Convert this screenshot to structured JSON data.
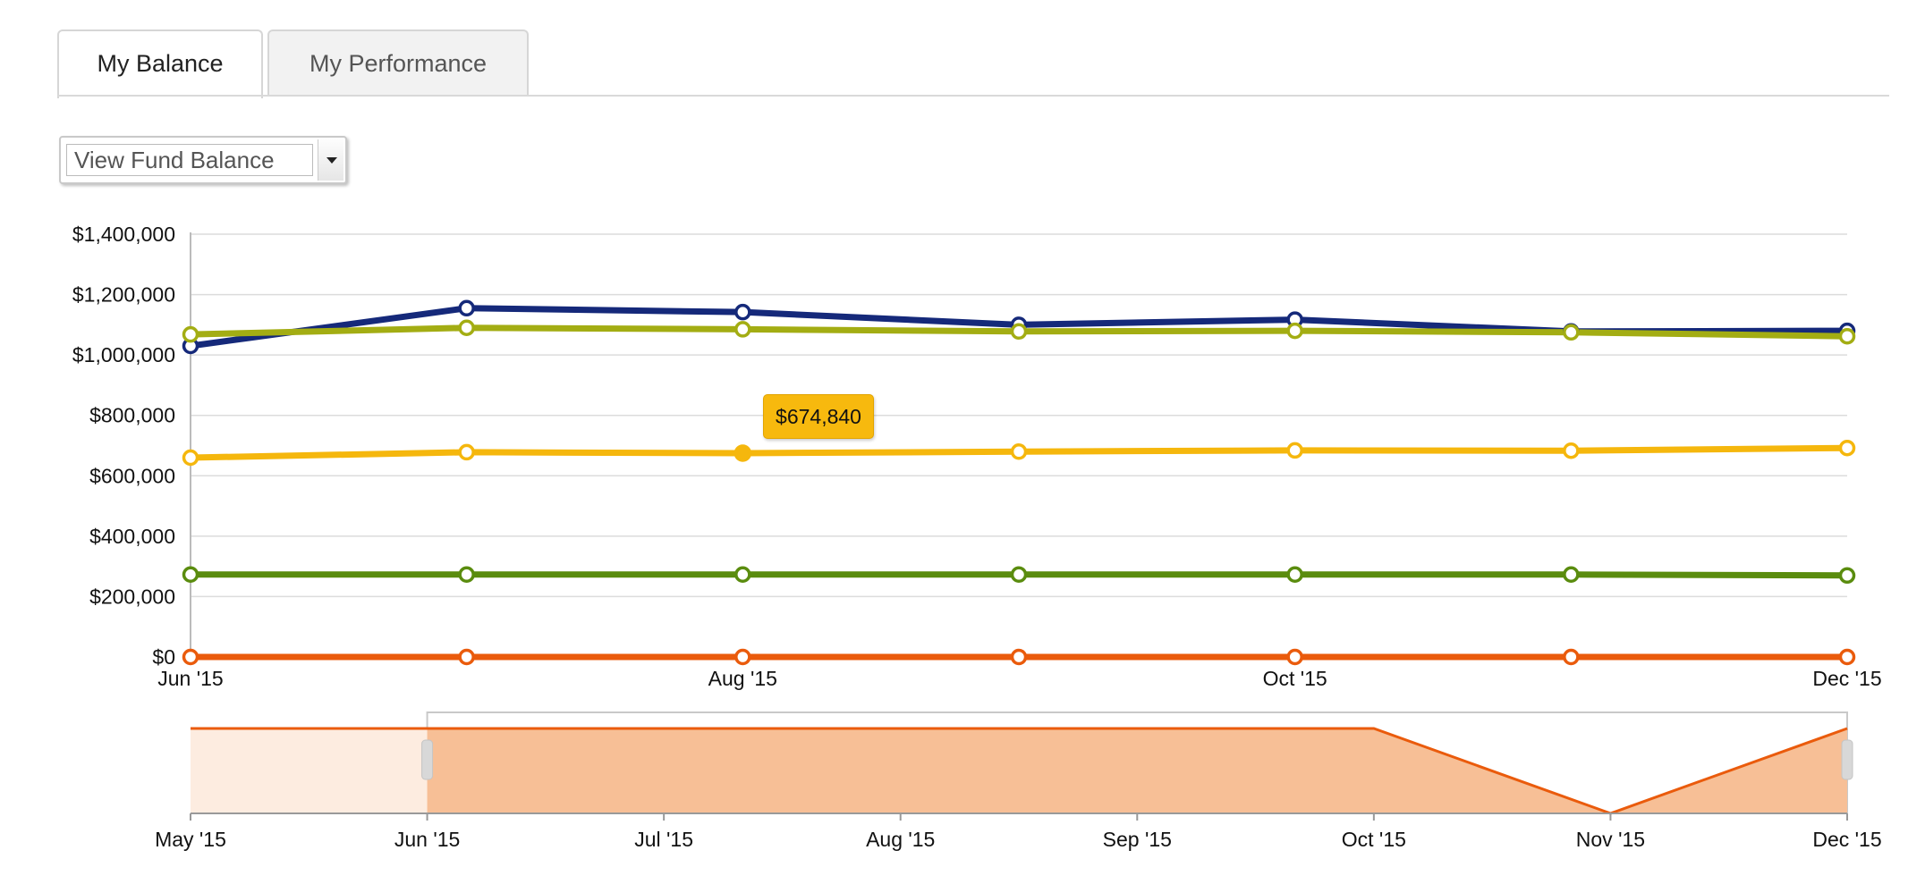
{
  "tabs": [
    {
      "label": "My Balance",
      "active": true
    },
    {
      "label": "My Performance",
      "active": false
    }
  ],
  "dropdown": {
    "selected": "View Fund Balance"
  },
  "tooltip": {
    "value": "$674,840"
  },
  "chart_data": {
    "type": "line",
    "x": [
      "Jun '15",
      "Jul '15",
      "Aug '15",
      "Sep '15",
      "Oct '15",
      "Nov '15",
      "Dec '15"
    ],
    "x_tick_labels": [
      "Jun '15",
      "Aug '15",
      "Oct '15",
      "Dec '15"
    ],
    "y_tick_labels": [
      "$0",
      "$200,000",
      "$400,000",
      "$600,000",
      "$800,000",
      "$1,000,000",
      "$1,200,000",
      "$1,400,000"
    ],
    "ylim": [
      0,
      1400000
    ],
    "grid": true,
    "series": [
      {
        "color": "#15297a",
        "values": [
          1030000,
          1155000,
          1142000,
          1100000,
          1117000,
          1078000,
          1080000
        ]
      },
      {
        "color": "#a3ad13",
        "values": [
          1068000,
          1090000,
          1085000,
          1078000,
          1080000,
          1075000,
          1062000
        ]
      },
      {
        "color": "#f5b70d",
        "values": [
          660000,
          678000,
          674840,
          680000,
          684000,
          683000,
          692000
        ]
      },
      {
        "color": "#5a8c0e",
        "values": [
          273000,
          273000,
          273000,
          273000,
          273000,
          273000,
          270000
        ]
      },
      {
        "color": "#ea5b0c",
        "values": [
          0,
          0,
          0,
          0,
          0,
          0,
          0
        ]
      }
    ],
    "highlight": {
      "series_index": 2,
      "point_index": 2
    },
    "navigator": {
      "x_tick_labels": [
        "May '15",
        "Jun '15",
        "Jul '15",
        "Aug '15",
        "Sep '15",
        "Oct '15",
        "Nov '15",
        "Dec '15"
      ],
      "values": [
        1,
        1,
        1,
        1,
        1,
        1,
        0,
        1
      ],
      "selected_range": [
        "Jun '15",
        "Dec '15"
      ],
      "fill_color": "#f7bf96",
      "line_color": "#ea5b0c"
    }
  }
}
